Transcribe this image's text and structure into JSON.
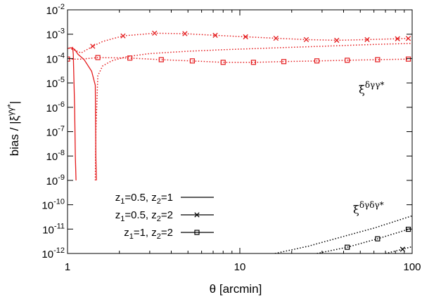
{
  "chart_data": {
    "type": "line",
    "xlabel": "θ [arcmin]",
    "ylabel": "bias / |ξ^{γγ*}|",
    "xscale": "log",
    "yscale": "log",
    "xlim": [
      1,
      100
    ],
    "ylim": [
      1e-12,
      0.01
    ],
    "x_ticks": [
      {
        "value": 1,
        "label": "1"
      },
      {
        "value": 10,
        "label": "10"
      },
      {
        "value": 100,
        "label": "100"
      }
    ],
    "y_ticks": [
      {
        "value": 0.01,
        "base": "10",
        "exp": "-2"
      },
      {
        "value": 0.001,
        "base": "10",
        "exp": "-3"
      },
      {
        "value": 0.0001,
        "base": "10",
        "exp": "-4"
      },
      {
        "value": 1e-05,
        "base": "10",
        "exp": "-5"
      },
      {
        "value": 1e-06,
        "base": "10",
        "exp": "-6"
      },
      {
        "value": 1e-07,
        "base": "10",
        "exp": "-7"
      },
      {
        "value": 1e-08,
        "base": "10",
        "exp": "-8"
      },
      {
        "value": 1e-09,
        "base": "10",
        "exp": "-9"
      },
      {
        "value": 1e-10,
        "base": "10",
        "exp": "-10"
      },
      {
        "value": 1e-11,
        "base": "10",
        "exp": "-11"
      },
      {
        "value": 1e-12,
        "base": "10",
        "exp": "-12"
      }
    ],
    "legend": {
      "placement": "bottom-left",
      "entries": [
        {
          "label_parts": [
            "z",
            "1",
            "=0.5, z",
            "2",
            "=1"
          ],
          "line": "solid",
          "marker": "none"
        },
        {
          "label_parts": [
            "z",
            "1",
            "=0.5, z",
            "2",
            "=2"
          ],
          "line": "solid",
          "marker": "x"
        },
        {
          "label_parts": [
            "z",
            "1",
            "=1, z",
            "2",
            "=2"
          ],
          "line": "solid",
          "marker": "square"
        }
      ]
    },
    "annotations": [
      {
        "base": "ξ",
        "sup": "δγγ*",
        "group": "upper"
      },
      {
        "base": "ξ",
        "sup": "δγδγ*",
        "group": "lower"
      }
    ],
    "colors": {
      "upper": "#e41a1c",
      "lower": "#000000"
    },
    "series": [
      {
        "group": "upper",
        "style": "solid",
        "marker": "none",
        "x": [
          0.98,
          1.05,
          1.1,
          1.15,
          1.25,
          1.38,
          1.45,
          1.46,
          1.47
        ],
        "y": [
          0.00025,
          0.00028,
          0.00024,
          0.00015,
          9e-05,
          3e-05,
          8e-06,
          1e-08,
          1e-09
        ]
      },
      {
        "group": "upper",
        "style": "solid",
        "marker": "none",
        "x": [
          1.07,
          1.08,
          1.1,
          1.11,
          1.12
        ],
        "y": [
          0.0003,
          0.00015,
          1e-06,
          1e-08,
          1e-09
        ]
      },
      {
        "group": "upper",
        "style": "dotted",
        "marker": "x",
        "x": [
          0.98,
          1.1,
          1.2,
          1.4,
          1.6,
          2.1,
          3.2,
          4.8,
          7.2,
          10.8,
          16.2,
          24.3,
          36.5,
          54.8,
          82.2,
          95
        ],
        "y": [
          0.0003,
          0.00022,
          0.00017,
          0.00032,
          0.0005,
          0.00085,
          0.0011,
          0.00105,
          0.0009,
          0.00078,
          0.00068,
          0.0006,
          0.00056,
          0.0006,
          0.00065,
          0.00067
        ],
        "marked_x": [
          1.4,
          2.1,
          3.2,
          4.8,
          7.2,
          10.8,
          16.2,
          24.3,
          36.5,
          54.8,
          82.2,
          95
        ]
      },
      {
        "group": "upper",
        "style": "dotted",
        "marker": "none",
        "x": [
          1.45,
          1.46,
          1.5,
          1.6,
          1.8,
          2.2,
          3,
          5,
          8,
          15,
          30,
          60,
          100
        ],
        "y": [
          1e-09,
          1e-07,
          2e-05,
          5e-05,
          8e-05,
          0.00012,
          0.00016,
          0.0002,
          0.00023,
          0.00027,
          0.00032,
          0.00038,
          0.00042
        ]
      },
      {
        "group": "upper",
        "style": "dotted",
        "marker": "square",
        "x": [
          0.98,
          1.2,
          1.5,
          2.3,
          3.5,
          5.3,
          8,
          12,
          18,
          28,
          42,
          63,
          95
        ],
        "y": [
          9.5e-05,
          9.5e-05,
          0.00011,
          0.000105,
          9e-05,
          8e-05,
          7e-05,
          7e-05,
          7.5e-05,
          8e-05,
          8.5e-05,
          9e-05,
          9.5e-05
        ],
        "marked_x": [
          1,
          1.5,
          2.3,
          3.5,
          5.3,
          8,
          12,
          18,
          28,
          42,
          63,
          95
        ]
      },
      {
        "group": "lower",
        "style": "dotted",
        "marker": "none",
        "x": [
          16,
          25,
          40,
          60,
          100
        ],
        "y": [
          1e-12,
          2e-12,
          5e-12,
          1.1e-11,
          3.5e-11
        ]
      },
      {
        "group": "lower",
        "style": "dotted",
        "marker": "square",
        "x": [
          28,
          42,
          63,
          100
        ],
        "y": [
          1e-12,
          1.8e-12,
          4e-12,
          1.1e-11
        ],
        "marked_x": [
          42,
          63,
          95
        ]
      },
      {
        "group": "lower",
        "style": "dotted",
        "marker": "x",
        "x": [
          70,
          85,
          100
        ],
        "y": [
          1e-12,
          1.4e-12,
          1.9e-12
        ],
        "marked_x": [
          88
        ]
      }
    ]
  }
}
